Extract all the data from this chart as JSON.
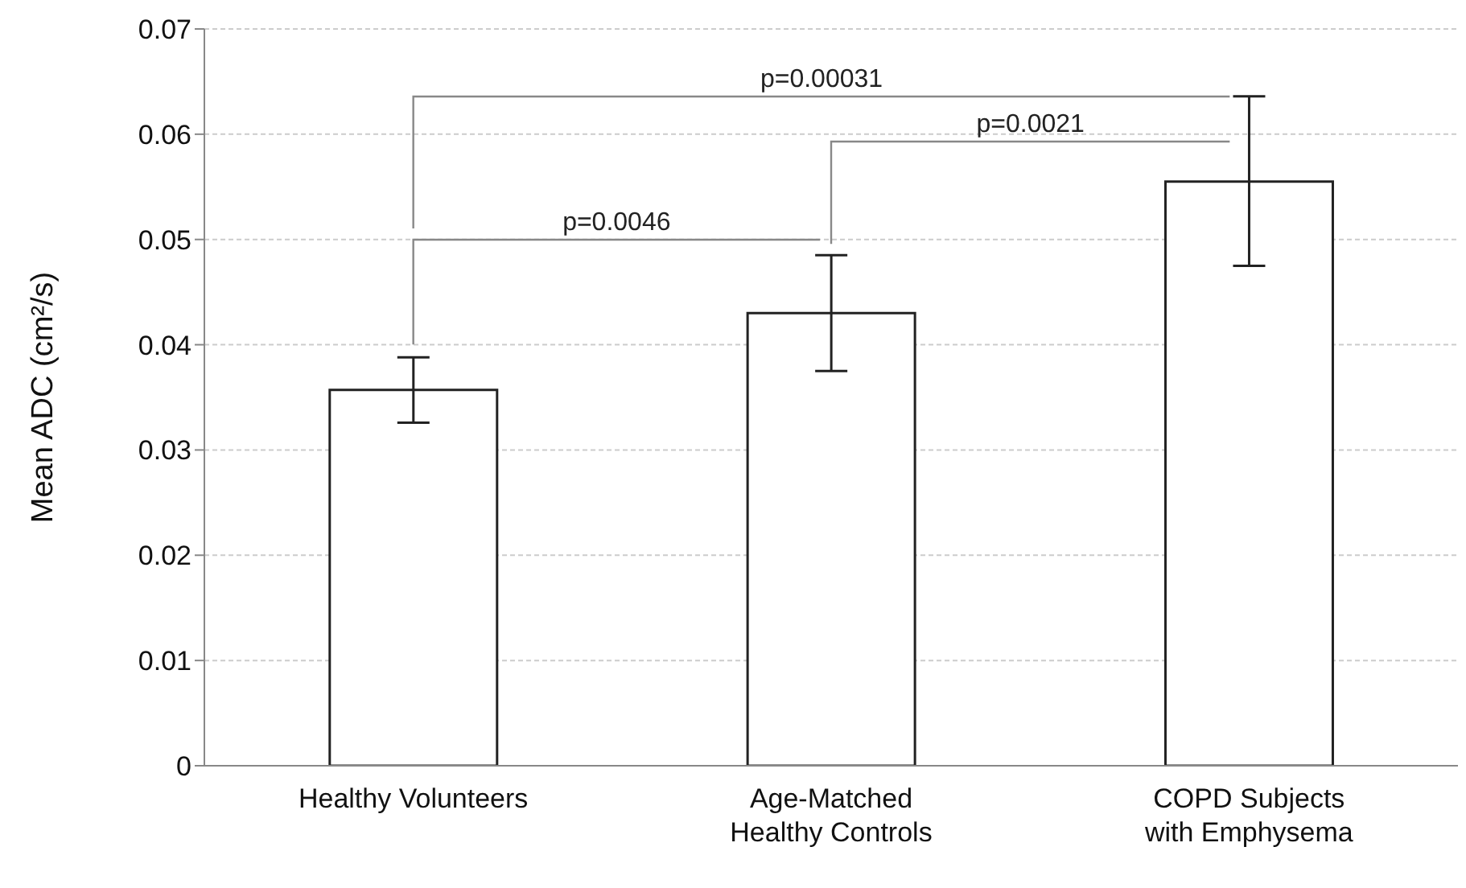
{
  "chart_data": {
    "type": "bar",
    "ylabel": "Mean ADC (cm²/s)",
    "categories": [
      "Healthy Volunteers",
      "Age-Matched\nHealthy Controls",
      "COPD Subjects\nwith Emphysema"
    ],
    "values": [
      0.0357,
      0.043,
      0.0555
    ],
    "errors": [
      [
        0.0326,
        0.0388
      ],
      [
        0.0375,
        0.0485
      ],
      [
        0.0475,
        0.0636
      ]
    ],
    "color": "#ffffff",
    "ylim": [
      0,
      0.07
    ],
    "yticks": [
      0,
      0.01,
      0.02,
      0.03,
      0.04,
      0.05,
      0.06,
      0.07
    ],
    "grid": "y",
    "annotations": [
      "p=0.0046",
      "p=0.0021",
      "p=0.00031"
    ]
  }
}
